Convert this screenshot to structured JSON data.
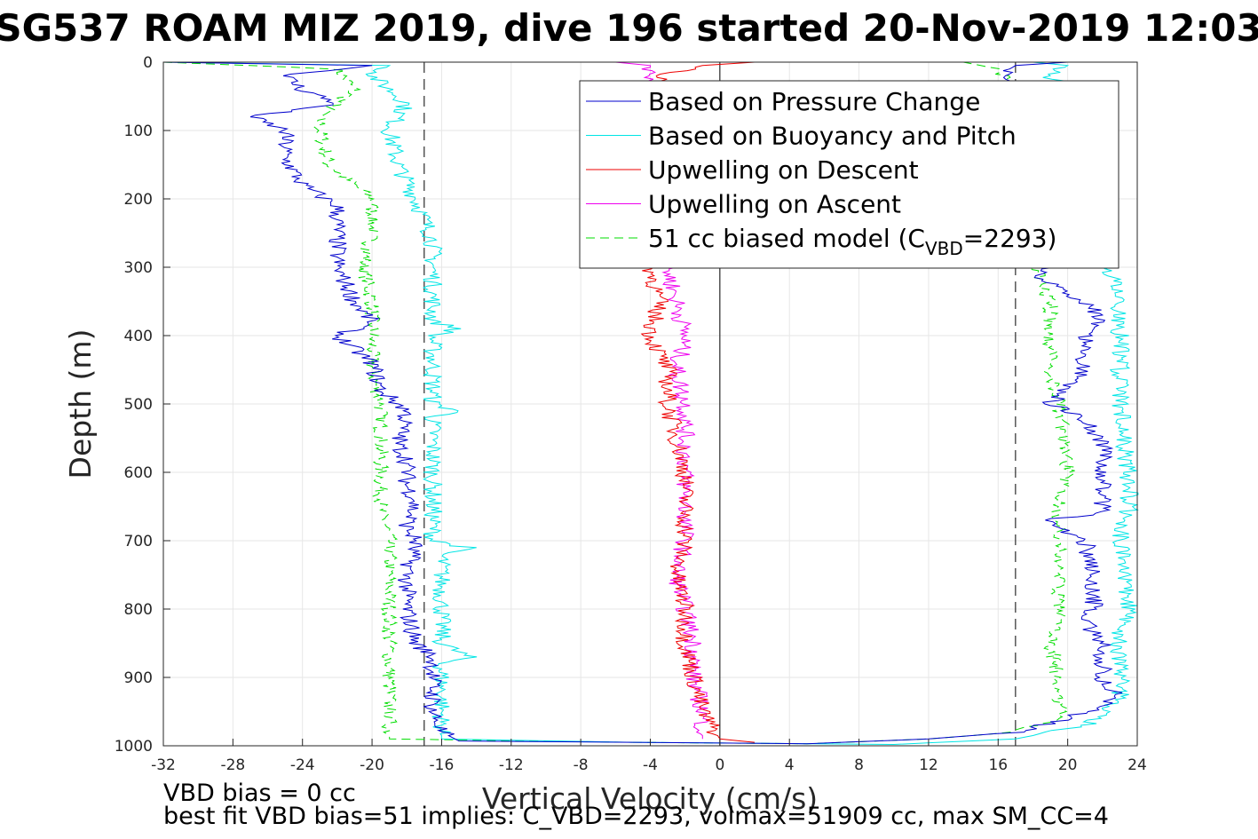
{
  "chart_data": {
    "type": "line",
    "title": "SG537 ROAM MIZ 2019, dive 196 started 20-Nov-2019 12:03",
    "xlabel": "Vertical Velocity (cm/s)",
    "ylabel": "Depth (m)",
    "xlim": [
      -32,
      24
    ],
    "ylim": [
      0,
      1000
    ],
    "y_reversed": true,
    "grid": true,
    "xticks": [
      -32,
      -28,
      -24,
      -20,
      -16,
      -12,
      -8,
      -4,
      0,
      4,
      8,
      12,
      16,
      20,
      24
    ],
    "yticks": [
      0,
      100,
      200,
      300,
      400,
      500,
      600,
      700,
      800,
      900,
      1000
    ],
    "legend_position": "top-right",
    "reference_lines": {
      "zero": 0,
      "dashed_x": [
        -17,
        17
      ]
    },
    "series": [
      {
        "name": "Based on Pressure Change",
        "color": "#0000cc",
        "style": "solid",
        "descent": [
          [
            0,
            -32
          ],
          [
            5,
            -20
          ],
          [
            20,
            -25
          ],
          [
            40,
            -24
          ],
          [
            60,
            -22
          ],
          [
            80,
            -27
          ],
          [
            100,
            -25
          ],
          [
            140,
            -25
          ],
          [
            180,
            -24
          ],
          [
            210,
            -22
          ],
          [
            260,
            -22
          ],
          [
            300,
            -22
          ],
          [
            350,
            -21
          ],
          [
            380,
            -20
          ],
          [
            400,
            -22
          ],
          [
            440,
            -20
          ],
          [
            480,
            -19.5
          ],
          [
            510,
            -18
          ],
          [
            560,
            -18.5
          ],
          [
            580,
            -18
          ],
          [
            620,
            -18
          ],
          [
            640,
            -17.5
          ],
          [
            680,
            -18
          ],
          [
            700,
            -17.5
          ],
          [
            750,
            -18
          ],
          [
            800,
            -18
          ],
          [
            850,
            -17.5
          ],
          [
            870,
            -16.5
          ],
          [
            900,
            -16.5
          ],
          [
            950,
            -16.5
          ],
          [
            980,
            -16
          ],
          [
            993,
            -15
          ],
          [
            995,
            -5
          ]
        ],
        "ascent": [
          [
            995,
            -5
          ],
          [
            997,
            5
          ],
          [
            990,
            12
          ],
          [
            980,
            17
          ],
          [
            960,
            20
          ],
          [
            930,
            23
          ],
          [
            900,
            22
          ],
          [
            850,
            22
          ],
          [
            820,
            21
          ],
          [
            800,
            21.5
          ],
          [
            750,
            21.5
          ],
          [
            700,
            21
          ],
          [
            670,
            18.5
          ],
          [
            660,
            22
          ],
          [
            600,
            22
          ],
          [
            560,
            22
          ],
          [
            520,
            21
          ],
          [
            500,
            19
          ],
          [
            450,
            21
          ],
          [
            400,
            21
          ],
          [
            380,
            22
          ],
          [
            350,
            21
          ],
          [
            330,
            19.5
          ],
          [
            310,
            18
          ],
          [
            300,
            19
          ],
          [
            200,
            19
          ],
          [
            100,
            17
          ],
          [
            40,
            17
          ],
          [
            20,
            16
          ],
          [
            5,
            17
          ],
          [
            0,
            20
          ]
        ]
      },
      {
        "name": "Based on Buoyancy and Pitch",
        "color": "#00e5e5",
        "style": "solid",
        "descent": [
          [
            0,
            -32
          ],
          [
            5,
            -19
          ],
          [
            20,
            -20
          ],
          [
            60,
            -18
          ],
          [
            100,
            -19
          ],
          [
            150,
            -18.5
          ],
          [
            200,
            -17.5
          ],
          [
            260,
            -16.5
          ],
          [
            300,
            -16.5
          ],
          [
            380,
            -16.5
          ],
          [
            390,
            -15
          ],
          [
            400,
            -16.5
          ],
          [
            500,
            -16.5
          ],
          [
            510,
            -15
          ],
          [
            520,
            -16.5
          ],
          [
            600,
            -16.5
          ],
          [
            700,
            -16.5
          ],
          [
            710,
            -14.5
          ],
          [
            720,
            -16
          ],
          [
            850,
            -16
          ],
          [
            870,
            -14.5
          ],
          [
            880,
            -16
          ],
          [
            950,
            -16
          ],
          [
            990,
            -16
          ],
          [
            995,
            -5
          ]
        ],
        "ascent": [
          [
            995,
            -5
          ],
          [
            998,
            10
          ],
          [
            990,
            17
          ],
          [
            970,
            21
          ],
          [
            930,
            23
          ],
          [
            880,
            23
          ],
          [
            840,
            23
          ],
          [
            800,
            23.5
          ],
          [
            700,
            23
          ],
          [
            660,
            23.5
          ],
          [
            600,
            23.5
          ],
          [
            500,
            23
          ],
          [
            450,
            23
          ],
          [
            400,
            23
          ],
          [
            350,
            23
          ],
          [
            320,
            23
          ],
          [
            300,
            22
          ],
          [
            200,
            22
          ],
          [
            100,
            20
          ],
          [
            40,
            20
          ],
          [
            20,
            19
          ],
          [
            5,
            20
          ],
          [
            0,
            18
          ]
        ]
      },
      {
        "name": "Upwelling on Descent",
        "color": "#ee0000",
        "style": "solid",
        "profile": [
          [
            0,
            2
          ],
          [
            5,
            -1
          ],
          [
            20,
            -3.5
          ],
          [
            40,
            -3
          ],
          [
            60,
            -4
          ],
          [
            80,
            -3.5
          ],
          [
            100,
            -3.5
          ],
          [
            150,
            -4
          ],
          [
            200,
            -3.5
          ],
          [
            250,
            -3.5
          ],
          [
            300,
            -4
          ],
          [
            350,
            -3.5
          ],
          [
            400,
            -4
          ],
          [
            450,
            -3
          ],
          [
            500,
            -3
          ],
          [
            550,
            -2.5
          ],
          [
            600,
            -2
          ],
          [
            650,
            -2
          ],
          [
            700,
            -2
          ],
          [
            750,
            -2.5
          ],
          [
            800,
            -2
          ],
          [
            850,
            -2
          ],
          [
            900,
            -1.5
          ],
          [
            950,
            -1
          ],
          [
            990,
            0
          ],
          [
            995,
            2
          ]
        ]
      },
      {
        "name": "Upwelling on Ascent",
        "color": "#ee00ee",
        "style": "solid",
        "profile": [
          [
            0,
            -6
          ],
          [
            5,
            -4
          ],
          [
            20,
            -4
          ],
          [
            40,
            -3.5
          ],
          [
            60,
            -3
          ],
          [
            80,
            -3
          ],
          [
            100,
            -3
          ],
          [
            150,
            -3.5
          ],
          [
            200,
            -3
          ],
          [
            250,
            -3
          ],
          [
            300,
            -3
          ],
          [
            350,
            -2.5
          ],
          [
            400,
            -2
          ],
          [
            450,
            -2.5
          ],
          [
            500,
            -2
          ],
          [
            550,
            -2
          ],
          [
            600,
            -2
          ],
          [
            650,
            -2
          ],
          [
            700,
            -2
          ],
          [
            750,
            -2.5
          ],
          [
            800,
            -2
          ],
          [
            850,
            -1.5
          ],
          [
            900,
            -1.5
          ],
          [
            950,
            -1
          ],
          [
            990,
            -1
          ]
        ]
      },
      {
        "name": "51 cc biased model (C",
        "name_subscript": "VBD",
        "name_suffix": "=2293)",
        "color": "#00dd00",
        "style": "dashed",
        "descent": [
          [
            0,
            -32
          ],
          [
            10,
            -22
          ],
          [
            40,
            -21
          ],
          [
            80,
            -23
          ],
          [
            100,
            -23
          ],
          [
            150,
            -22.5
          ],
          [
            200,
            -20
          ],
          [
            250,
            -20
          ],
          [
            300,
            -20.5
          ],
          [
            350,
            -20
          ],
          [
            400,
            -20
          ],
          [
            450,
            -20
          ],
          [
            500,
            -19.5
          ],
          [
            550,
            -19.5
          ],
          [
            600,
            -19.5
          ],
          [
            650,
            -19.5
          ],
          [
            700,
            -19
          ],
          [
            750,
            -19
          ],
          [
            800,
            -19
          ],
          [
            850,
            -19
          ],
          [
            900,
            -19
          ],
          [
            950,
            -19
          ],
          [
            990,
            -19
          ],
          [
            995,
            -5
          ]
        ],
        "ascent": [
          [
            995,
            -5
          ],
          [
            997,
            5
          ],
          [
            990,
            12
          ],
          [
            980,
            17
          ],
          [
            960,
            19.5
          ],
          [
            900,
            19.5
          ],
          [
            850,
            19
          ],
          [
            800,
            19.5
          ],
          [
            700,
            19.5
          ],
          [
            650,
            19.5
          ],
          [
            600,
            20
          ],
          [
            500,
            19.5
          ],
          [
            450,
            19
          ],
          [
            400,
            19
          ],
          [
            350,
            19
          ],
          [
            320,
            18.5
          ],
          [
            300,
            18
          ],
          [
            200,
            17.5
          ],
          [
            100,
            17
          ],
          [
            40,
            17
          ],
          [
            10,
            16
          ],
          [
            0,
            14
          ]
        ]
      }
    ],
    "legend": {
      "entries": [
        "Based on Pressure Change",
        "Based on Buoyancy and Pitch",
        "Upwelling on Descent",
        "Upwelling on Ascent"
      ],
      "model_entry": {
        "prefix": "51 cc biased model (C",
        "sub": "VBD",
        "suffix": "=2293)"
      }
    },
    "annotations": [
      "VBD bias = 0 cc",
      "best fit VBD bias=51 implies: C_VBD=2293, volmax=51909 cc, max SM_CC=4"
    ]
  }
}
